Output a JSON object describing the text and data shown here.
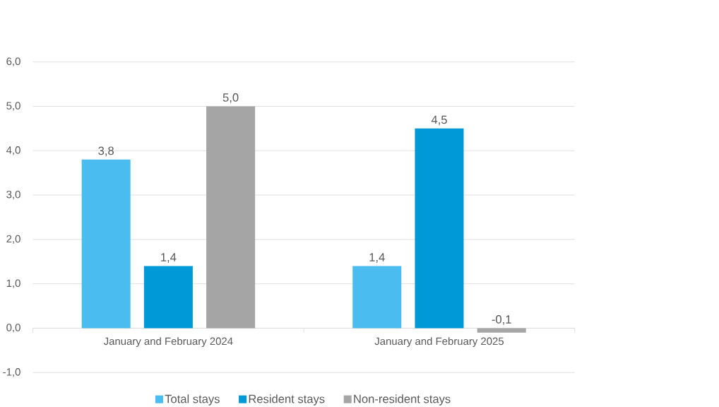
{
  "chart_data": {
    "type": "bar",
    "categories": [
      "January and February 2024",
      "January and February 2025"
    ],
    "series": [
      {
        "name": "Total stays",
        "color": "#4bbcf0",
        "values": [
          3.8,
          1.4
        ],
        "value_labels": [
          "3,8",
          "1,4"
        ]
      },
      {
        "name": "Resident stays",
        "color": "#0099d8",
        "values": [
          1.4,
          4.5
        ],
        "value_labels": [
          "1,4",
          "4,5"
        ]
      },
      {
        "name": "Non-resident stays",
        "color": "#a5a5a5",
        "values": [
          5.0,
          -0.1
        ],
        "value_labels": [
          "5,0",
          "-0,1"
        ]
      }
    ],
    "ylim": [
      -1,
      6
    ],
    "yticks": [
      {
        "value": -1,
        "label": "-1,0"
      },
      {
        "value": 0,
        "label": "0,0"
      },
      {
        "value": 1,
        "label": "1,0"
      },
      {
        "value": 2,
        "label": "2,0"
      },
      {
        "value": 3,
        "label": "3,0"
      },
      {
        "value": 4,
        "label": "4,0"
      },
      {
        "value": 5,
        "label": "5,0"
      },
      {
        "value": 6,
        "label": "6,0"
      }
    ],
    "grid": "y",
    "legend": "bottom"
  }
}
